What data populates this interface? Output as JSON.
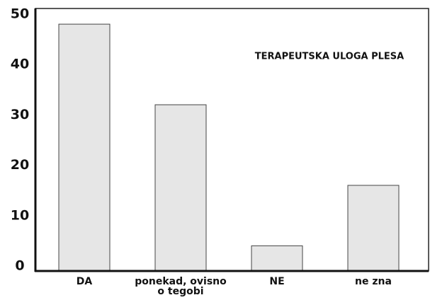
{
  "chart_data": {
    "type": "bar",
    "title": "TERAPEUTSKA ULOGA PLESA",
    "categories": [
      "DA",
      "ponekad, ovisno o tegobi",
      "NE",
      "ne zna"
    ],
    "values": [
      49,
      33,
      5,
      17
    ],
    "color": "#e6e6e6",
    "ylim": [
      0,
      50
    ],
    "yticks": [
      0,
      10,
      20,
      30,
      40,
      50
    ],
    "grid": false
  }
}
